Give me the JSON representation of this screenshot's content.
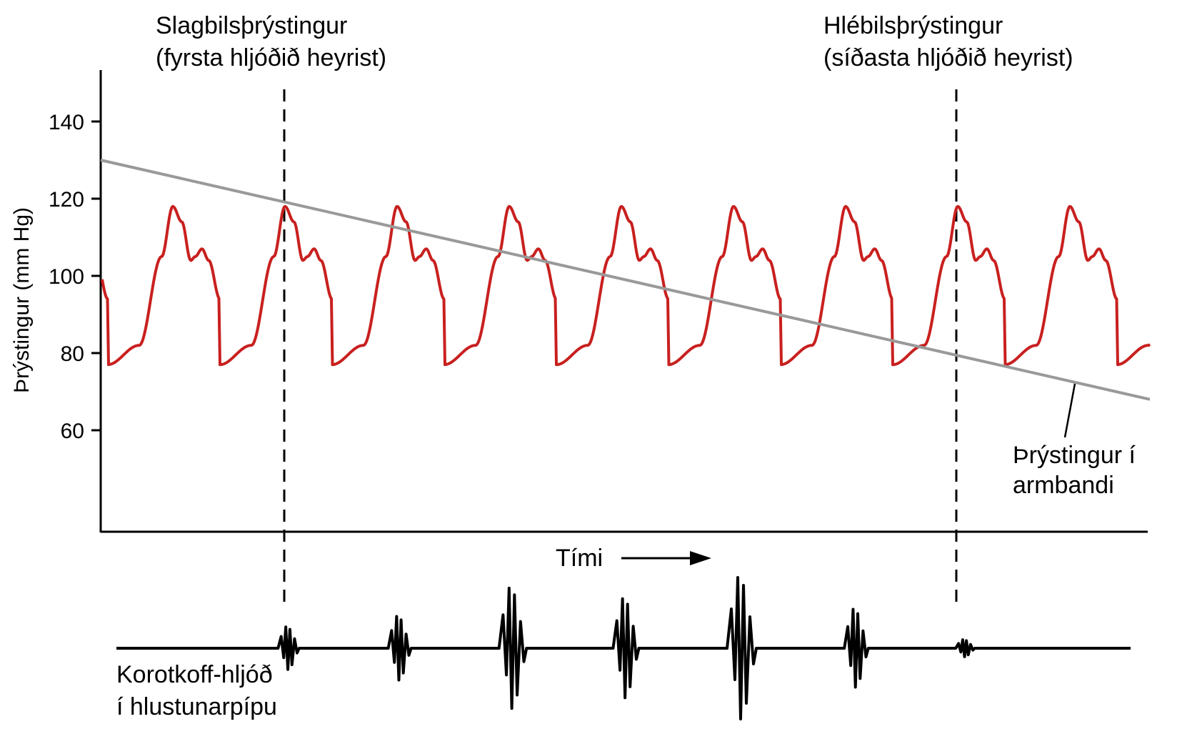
{
  "chart_data": {
    "type": "line",
    "ylabel": "Þrýstingur (mm Hg)",
    "xlabel": "Tími",
    "yticks": [
      60,
      80,
      100,
      120,
      140
    ],
    "ylim": [
      35,
      150
    ],
    "grid": false,
    "annotations": {
      "systolic": {
        "line1": "Slagbilsþrýstingur",
        "line2": "(fyrsta hljóðið heyrist)",
        "pressure": 119
      },
      "diastolic": {
        "line1": "Hlébilsþrýstingur",
        "line2": "(síðasta hljóðið heyrist)",
        "pressure": 79.5
      },
      "cuff": {
        "line1": "Þrýstingur í",
        "line2": "armbandi"
      },
      "korotkoff": {
        "line1": "Korotkoff-hljóð",
        "line2": "í hlustunarpípu"
      }
    },
    "series": [
      {
        "name": "Þrýstingur í armbandi",
        "color": "#999999",
        "start": 130,
        "end": 68
      },
      {
        "color": "#c8201f",
        "systolic_peak": 118,
        "dicrotic_notch": 104,
        "dicrotic_peak": 107,
        "diastolic_trough": 77,
        "beats": 9
      }
    ],
    "korotkoff_sounds": [
      0.3,
      0.45,
      0.85,
      0.7,
      1.0,
      0.55,
      0.12
    ]
  }
}
